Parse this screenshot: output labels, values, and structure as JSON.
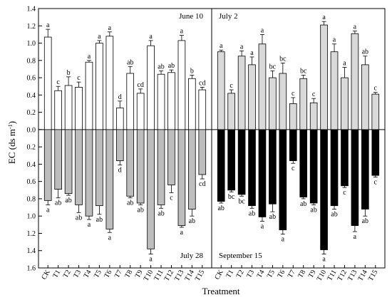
{
  "chart_data": {
    "type": "bar",
    "ylabel": "EC (ds m",
    "ylabel_sup": "-1",
    "ylabel_close": ")",
    "xlabel": "Treatment",
    "ylim": [
      -1.6,
      1.4
    ],
    "y_ticks": [
      {
        "v": 1.4,
        "t": "1.4"
      },
      {
        "v": 1.2,
        "t": "1.2"
      },
      {
        "v": 1.0,
        "t": "1.0"
      },
      {
        "v": 0.8,
        "t": "0.8"
      },
      {
        "v": 0.6,
        "t": "0.6"
      },
      {
        "v": 0.4,
        "t": "0.4"
      },
      {
        "v": 0.2,
        "t": "0.2"
      },
      {
        "v": 0.0,
        "t": "0.0"
      },
      {
        "v": -0.2,
        "t": "0.2"
      },
      {
        "v": -0.4,
        "t": "0.4"
      },
      {
        "v": -0.6,
        "t": "0.6"
      },
      {
        "v": -0.8,
        "t": "0.8"
      },
      {
        "v": -1.0,
        "t": "1.0"
      },
      {
        "v": -1.2,
        "t": "1.2"
      },
      {
        "v": -1.4,
        "t": "1.4"
      },
      {
        "v": -1.6,
        "t": "1.6"
      }
    ],
    "categories": [
      "CK",
      "T1",
      "T2",
      "T3",
      "T4",
      "T5",
      "T6",
      "T7",
      "T8",
      "T9",
      "T10",
      "T11",
      "T12",
      "T13",
      "T14",
      "T15"
    ],
    "panels": [
      {
        "position": "left",
        "series": [
          {
            "name": "June 10",
            "direction": "up",
            "color": "#ffffff",
            "values": [
              1.07,
              0.45,
              0.51,
              0.49,
              0.78,
              1.0,
              1.08,
              0.25,
              0.65,
              0.42,
              0.97,
              0.64,
              0.66,
              1.03,
              0.59,
              0.46
            ],
            "errors": [
              0.09,
              0.05,
              0.1,
              0.06,
              0.02,
              0.03,
              0.05,
              0.08,
              0.08,
              0.05,
              0.06,
              0.04,
              0.03,
              0.06,
              0.04,
              0.03
            ],
            "letters": [
              "a",
              "c",
              "b",
              "c",
              "a",
              "a",
              "a",
              "d",
              "ab",
              "cd",
              "a",
              "ab",
              "ab",
              "a",
              "b",
              "cd"
            ]
          },
          {
            "name": "July 28",
            "direction": "down",
            "color": "#bdbdbd",
            "values": [
              0.82,
              0.69,
              0.74,
              0.87,
              1.0,
              0.88,
              1.15,
              0.36,
              0.77,
              0.85,
              1.38,
              0.87,
              0.64,
              1.11,
              0.92,
              0.52
            ],
            "errors": [
              0.05,
              0.1,
              0.02,
              0.09,
              0.04,
              0.1,
              0.04,
              0.05,
              0.02,
              0.02,
              0.06,
              0.04,
              0.09,
              0.02,
              0.08,
              0.05
            ],
            "letters": [
              "a",
              "ab",
              "ab",
              "ab",
              "a",
              "ab",
              "a",
              "d",
              "ab",
              "ab",
              "a",
              "ab",
              "c",
              "a",
              "ab",
              "cd"
            ]
          }
        ]
      },
      {
        "position": "right",
        "series": [
          {
            "name": "July 2",
            "direction": "up",
            "color": "#d9d9d9",
            "values": [
              0.9,
              0.42,
              0.85,
              0.75,
              0.99,
              0.6,
              0.65,
              0.3,
              0.59,
              0.31,
              1.21,
              0.9,
              0.6,
              1.11,
              0.75,
              0.41
            ],
            "errors": [
              0.02,
              0.04,
              0.06,
              0.09,
              0.11,
              0.08,
              0.12,
              0.07,
              0.04,
              0.05,
              0.04,
              0.09,
              0.12,
              0.03,
              0.1,
              0.02
            ],
            "letters": [
              "a",
              "c",
              "a",
              "a",
              "a",
              "bc",
              "bc",
              "c",
              "bc",
              "c",
              "a",
              "a",
              "a",
              "a",
              "ab",
              "c"
            ]
          },
          {
            "name": "September 15",
            "direction": "down",
            "color": "#000000",
            "values": [
              0.83,
              0.7,
              0.75,
              0.88,
              1.01,
              0.86,
              1.16,
              0.36,
              0.78,
              0.85,
              1.39,
              0.88,
              0.65,
              1.11,
              0.92,
              0.53
            ],
            "errors": [
              0.02,
              0.02,
              0.02,
              0.03,
              0.05,
              0.09,
              0.05,
              0.03,
              0.02,
              0.02,
              0.05,
              0.04,
              0.02,
              0.07,
              0.08,
              0.02
            ],
            "letters": [
              "ab",
              "bc",
              "bc",
              "ab",
              "a",
              "ab",
              "a",
              "c",
              "ab",
              "ab",
              "a",
              "ab",
              "c",
              "a",
              "ab",
              "c"
            ]
          }
        ]
      }
    ]
  }
}
